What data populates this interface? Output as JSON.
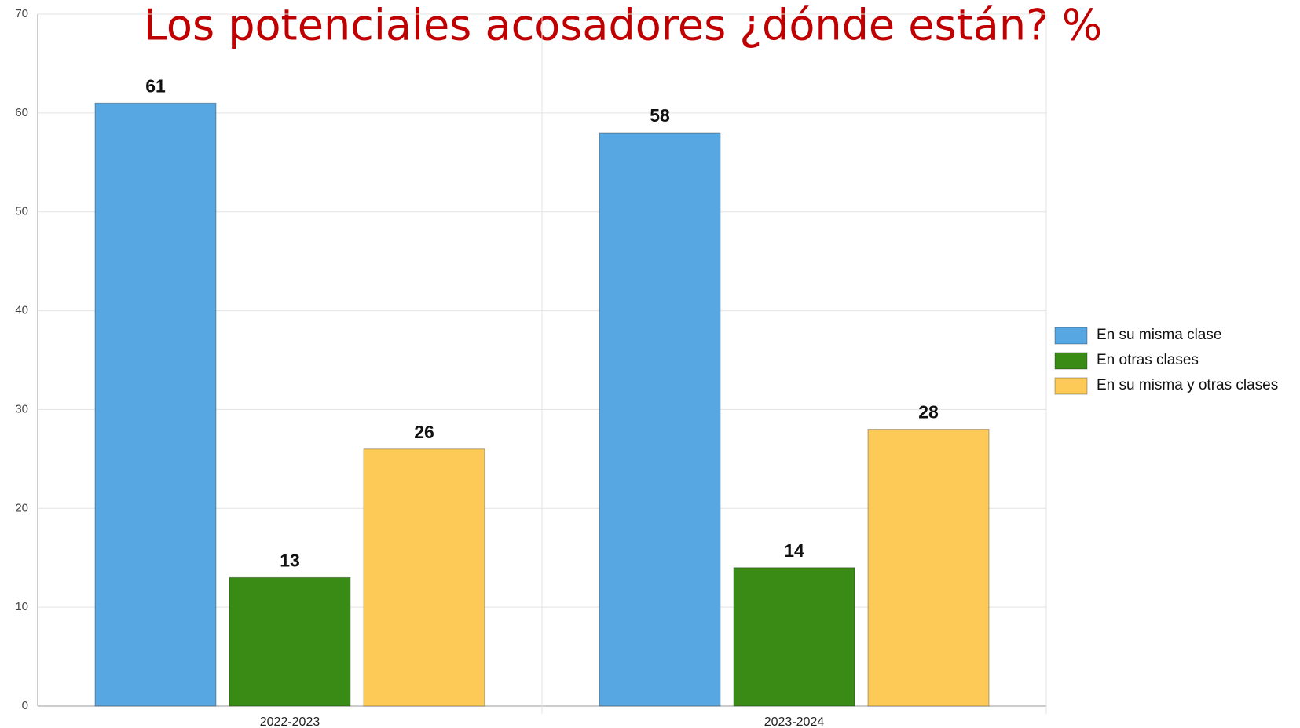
{
  "chart_data": {
    "type": "bar",
    "title": "Los potenciales acosadores ¿dónde están? %",
    "categories": [
      "2022-2023",
      "2023-2024"
    ],
    "series": [
      {
        "name": "En su misma clase",
        "color": "#57a8e2",
        "values": [
          61,
          58
        ]
      },
      {
        "name": "En otras clases",
        "color": "#3a8b16",
        "values": [
          13,
          14
        ]
      },
      {
        "name": "En su misma y otras clases",
        "color": "#fdca58",
        "values": [
          26,
          28
        ]
      }
    ],
    "ylim": [
      0,
      70
    ],
    "yticks": [
      0,
      10,
      20,
      30,
      40,
      50,
      60,
      70
    ],
    "grid": true,
    "legend": "right"
  }
}
